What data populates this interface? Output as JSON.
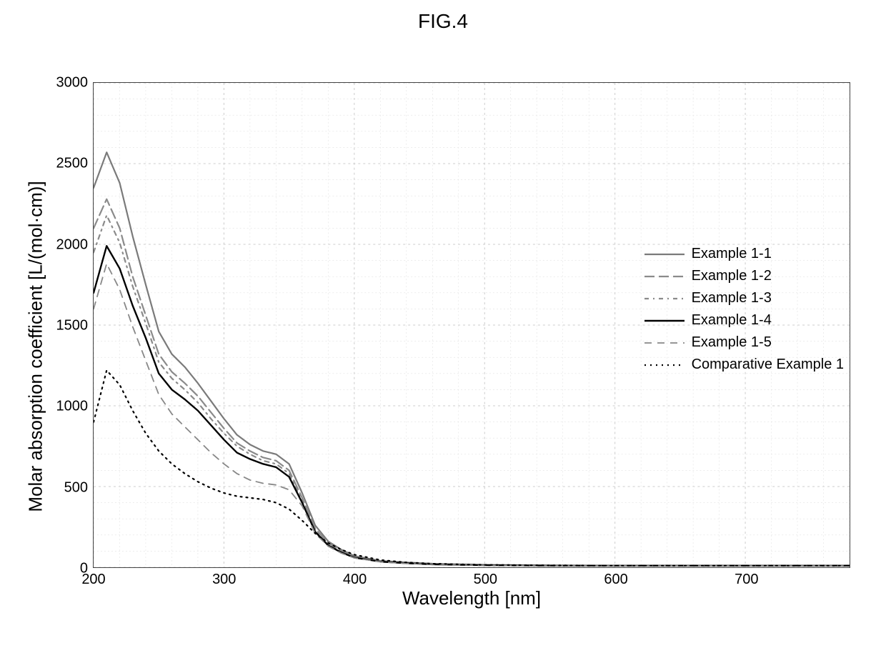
{
  "figure_title": "FIG.4",
  "chart": {
    "type": "line",
    "xlabel": "Wavelength  [nm]",
    "ylabel": "Molar absorption coefficient [L/(mol·cm)]",
    "title_fontsize": 28,
    "label_fontsize": 26,
    "tick_fontsize": 20,
    "legend_fontsize": 20,
    "background_color": "#ffffff",
    "axis_color": "#444444",
    "grid_color_major": "#cccccc",
    "grid_color_minor": "#e2e2e2",
    "xlim": [
      200,
      780
    ],
    "ylim": [
      0,
      3000
    ],
    "xticks_major": [
      200,
      300,
      400,
      500,
      600,
      700
    ],
    "xtick_minor_step": 20,
    "yticks_major": [
      0,
      500,
      1000,
      1500,
      2000,
      2500,
      3000
    ],
    "ytick_minor_step": 100,
    "grid_major_width": 1,
    "grid_minor_width": 0.6,
    "x_wavelength": [
      200,
      210,
      220,
      230,
      240,
      250,
      260,
      270,
      280,
      290,
      300,
      310,
      320,
      330,
      340,
      350,
      360,
      370,
      380,
      390,
      400,
      420,
      440,
      460,
      500,
      550,
      600,
      650,
      700,
      750,
      780
    ],
    "series": [
      {
        "label": "Example  1-1",
        "color": "#7a7a7a",
        "width": 2.2,
        "dash": "",
        "y": [
          2350,
          2570,
          2380,
          2050,
          1750,
          1460,
          1320,
          1240,
          1140,
          1030,
          920,
          820,
          760,
          720,
          700,
          640,
          460,
          260,
          160,
          110,
          70,
          40,
          30,
          22,
          15,
          12,
          10,
          10,
          10,
          10,
          10
        ]
      },
      {
        "label": "Example  1-2",
        "color": "#8a8a8a",
        "width": 2.2,
        "dash": "14 6",
        "y": [
          2100,
          2280,
          2100,
          1800,
          1560,
          1320,
          1210,
          1140,
          1060,
          960,
          860,
          770,
          720,
          680,
          660,
          600,
          430,
          240,
          150,
          100,
          65,
          38,
          28,
          20,
          14,
          11,
          10,
          10,
          10,
          10,
          10
        ]
      },
      {
        "label": "Example  1-3",
        "color": "#8a8a8a",
        "width": 2.2,
        "dash": "6 6 2 6",
        "y": [
          1950,
          2180,
          2010,
          1740,
          1510,
          1270,
          1170,
          1100,
          1020,
          920,
          830,
          750,
          700,
          660,
          640,
          580,
          410,
          230,
          140,
          95,
          62,
          36,
          26,
          19,
          13,
          11,
          10,
          10,
          10,
          10,
          10
        ]
      },
      {
        "label": "Example  1-4",
        "color": "#000000",
        "width": 2.4,
        "dash": "",
        "y": [
          1700,
          1990,
          1850,
          1620,
          1420,
          1200,
          1100,
          1040,
          970,
          880,
          790,
          710,
          670,
          640,
          620,
          560,
          400,
          220,
          135,
          92,
          60,
          35,
          25,
          18,
          13,
          10,
          10,
          10,
          10,
          10,
          10
        ]
      },
      {
        "label": "Example  1-5",
        "color": "#888888",
        "width": 1.8,
        "dash": "10 8",
        "y": [
          1600,
          1880,
          1720,
          1490,
          1280,
          1070,
          950,
          870,
          790,
          710,
          640,
          580,
          540,
          520,
          510,
          480,
          380,
          210,
          130,
          88,
          58,
          34,
          24,
          18,
          12,
          10,
          10,
          10,
          10,
          10,
          10
        ]
      },
      {
        "label": "Comparative Example 1",
        "color": "#000000",
        "width": 2.2,
        "dash": "2 6",
        "y": [
          900,
          1220,
          1130,
          970,
          830,
          720,
          640,
          580,
          530,
          490,
          460,
          440,
          430,
          420,
          400,
          360,
          290,
          210,
          150,
          110,
          78,
          45,
          30,
          22,
          15,
          12,
          10,
          10,
          10,
          10,
          10
        ]
      }
    ],
    "legend_position": "right-middle"
  }
}
